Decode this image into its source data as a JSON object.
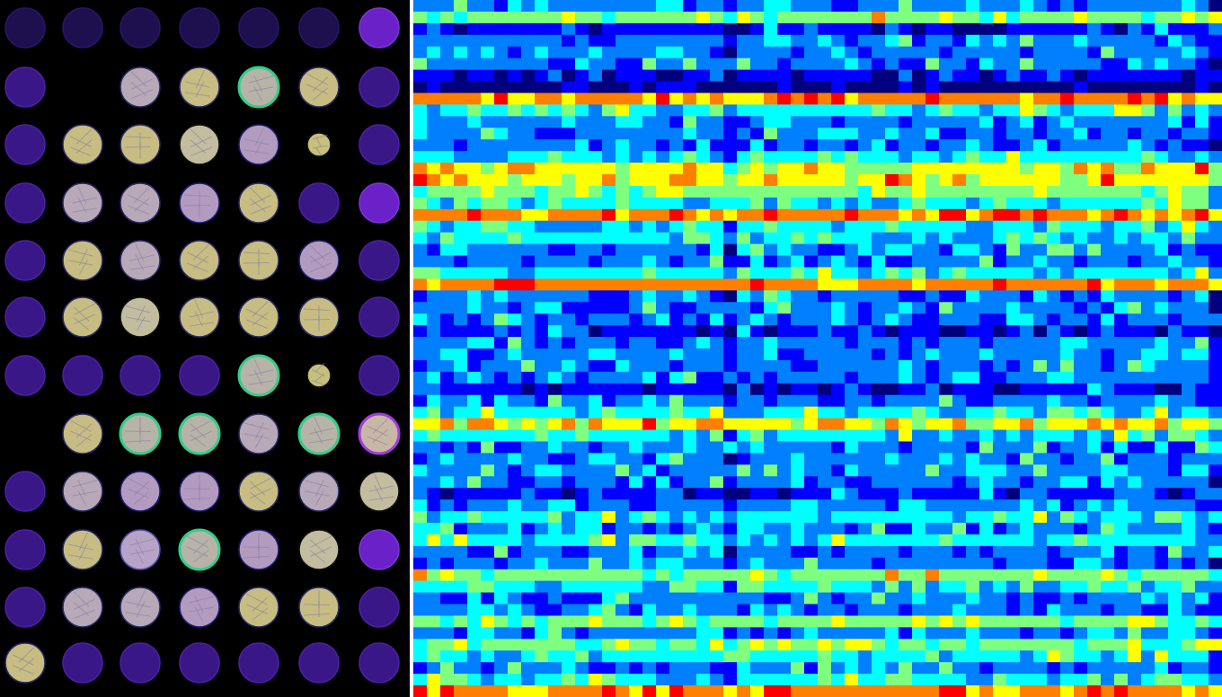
{
  "microarray": {
    "rows": 12,
    "cols": 7,
    "background_color": "#000000",
    "spots": [
      [
        "faint-purple",
        "faint-purple",
        "faint-purple",
        "faint-purple",
        "faint-purple",
        "faint-purple",
        "bright-purple"
      ],
      [
        "purple",
        "empty",
        "tissue-grey",
        "tissue-yellow",
        "tissue-green",
        "tissue-yellow",
        "purple"
      ],
      [
        "purple",
        "tissue-yellow",
        "tissue-yellow",
        "tissue-partial",
        "tissue-lilac",
        "tissue-small",
        "purple"
      ],
      [
        "purple",
        "tissue-grey",
        "tissue-grey",
        "tissue-lilac",
        "tissue-yellow",
        "purple",
        "bright-purple"
      ],
      [
        "purple",
        "tissue-yellow",
        "tissue-grey",
        "tissue-yellow",
        "tissue-yellow",
        "tissue-lilac",
        "purple"
      ],
      [
        "purple",
        "tissue-yellow",
        "tissue-partial",
        "tissue-yellow",
        "tissue-yellow",
        "tissue-yellow",
        "purple"
      ],
      [
        "purple",
        "purple",
        "purple",
        "purple",
        "tissue-green",
        "tissue-small",
        "purple"
      ],
      [
        "empty",
        "tissue-yellow",
        "tissue-green",
        "tissue-green",
        "tissue-grey",
        "tissue-green",
        "tissue-ring"
      ],
      [
        "purple",
        "tissue-grey",
        "tissue-lilac",
        "tissue-lilac",
        "tissue-yellow",
        "tissue-grey",
        "tissue-partial"
      ],
      [
        "purple",
        "tissue-yellow",
        "tissue-half",
        "tissue-green",
        "tissue-lilac",
        "tissue-partial",
        "bright-purple"
      ],
      [
        "purple",
        "tissue-grey",
        "tissue-grey",
        "tissue-lilac",
        "tissue-yellow",
        "tissue-yellow",
        "purple"
      ],
      [
        "tissue-yellow",
        "purple",
        "purple",
        "purple",
        "purple",
        "purple",
        "purple"
      ]
    ]
  },
  "heatmap": {
    "rows": 60,
    "cols": 60,
    "colormap": "jet",
    "colors": [
      "#00007f",
      "#0000ff",
      "#007fff",
      "#00ffff",
      "#7fff7f",
      "#ffff00",
      "#ff7f00",
      "#ff0000"
    ],
    "row_levels": [
      2,
      4,
      1,
      2,
      2,
      2,
      1,
      0,
      6,
      3,
      2,
      2,
      2,
      3,
      5,
      5,
      4,
      3,
      6,
      3,
      3,
      2,
      2,
      3,
      6,
      2,
      2,
      2,
      1,
      2,
      2,
      2,
      2,
      1,
      2,
      3,
      5,
      3,
      2,
      2,
      2,
      2,
      1,
      2,
      3,
      2,
      3,
      2,
      2,
      4,
      3,
      2,
      2,
      4,
      2,
      4,
      3,
      2,
      3,
      6
    ],
    "col_offsets": [
      0,
      0,
      0,
      0,
      0,
      0,
      0,
      0,
      0,
      0,
      0,
      0,
      0,
      0,
      0,
      0,
      0,
      0,
      0,
      0,
      0,
      0,
      0,
      -1,
      0,
      0,
      0,
      0,
      0,
      0,
      0,
      0,
      0,
      0,
      0,
      0,
      0,
      0,
      0,
      0,
      0,
      0,
      0,
      0,
      0,
      0,
      0,
      0,
      0,
      0,
      0,
      0,
      0,
      0,
      0,
      0,
      0,
      0,
      0,
      -1
    ]
  }
}
